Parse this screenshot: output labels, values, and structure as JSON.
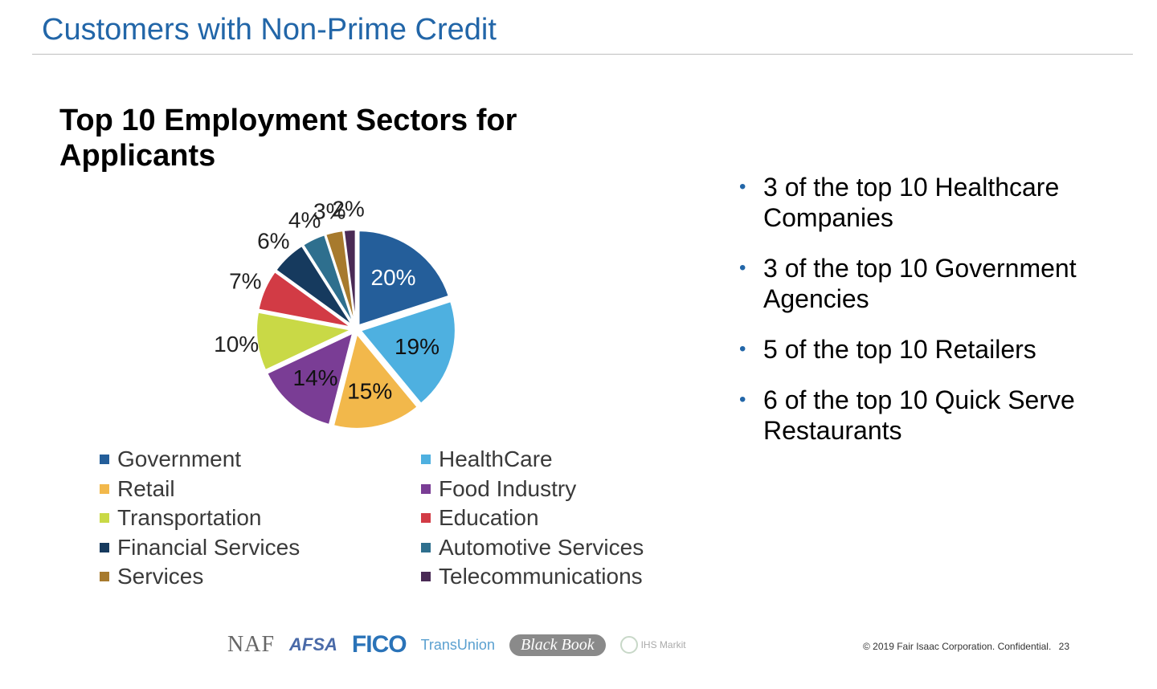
{
  "slide": {
    "title": "Customers with Non-Prime Credit",
    "footer_copyright": "© 2019 Fair Isaac Corporation. Confidential.",
    "page_number": "23"
  },
  "chart_data": {
    "type": "pie",
    "title": "Top 10 Employment Sectors for Applicants",
    "legend_position": "bottom",
    "slices": [
      {
        "label": "Government",
        "value": 20,
        "display": "20%",
        "color": "#245e9a"
      },
      {
        "label": "HealthCare",
        "value": 19,
        "display": "19%",
        "color": "#4eb0e0"
      },
      {
        "label": "Retail",
        "value": 15,
        "display": "15%",
        "color": "#f2b84b"
      },
      {
        "label": "Food Industry",
        "value": 14,
        "display": "14%",
        "color": "#7a3d95"
      },
      {
        "label": "Transportation",
        "value": 10,
        "display": "10%",
        "color": "#c9d946"
      },
      {
        "label": "Education",
        "value": 7,
        "display": "7%",
        "color": "#d23b45"
      },
      {
        "label": "Financial Services",
        "value": 6,
        "display": "6%",
        "color": "#163a5e"
      },
      {
        "label": "Automotive Services",
        "value": 4,
        "display": "4%",
        "color": "#2e6f8e"
      },
      {
        "label": "Services",
        "value": 3,
        "display": "3%",
        "color": "#a77a2d"
      },
      {
        "label": "Telecommunications",
        "value": 2,
        "display": "2%",
        "color": "#4a2a55"
      }
    ]
  },
  "bullets": [
    "3 of the top 10 Healthcare Companies",
    "3 of the top 10 Government Agencies",
    "5 of the top 10 Retailers",
    "6 of the top 10 Quick Serve Restaurants"
  ],
  "logos": {
    "naf": "NAF",
    "afsa": "AFSA",
    "fico": "FICO",
    "transunion": "TransUnion",
    "blackbook": "Black Book",
    "ihs": "IHS Markit"
  }
}
